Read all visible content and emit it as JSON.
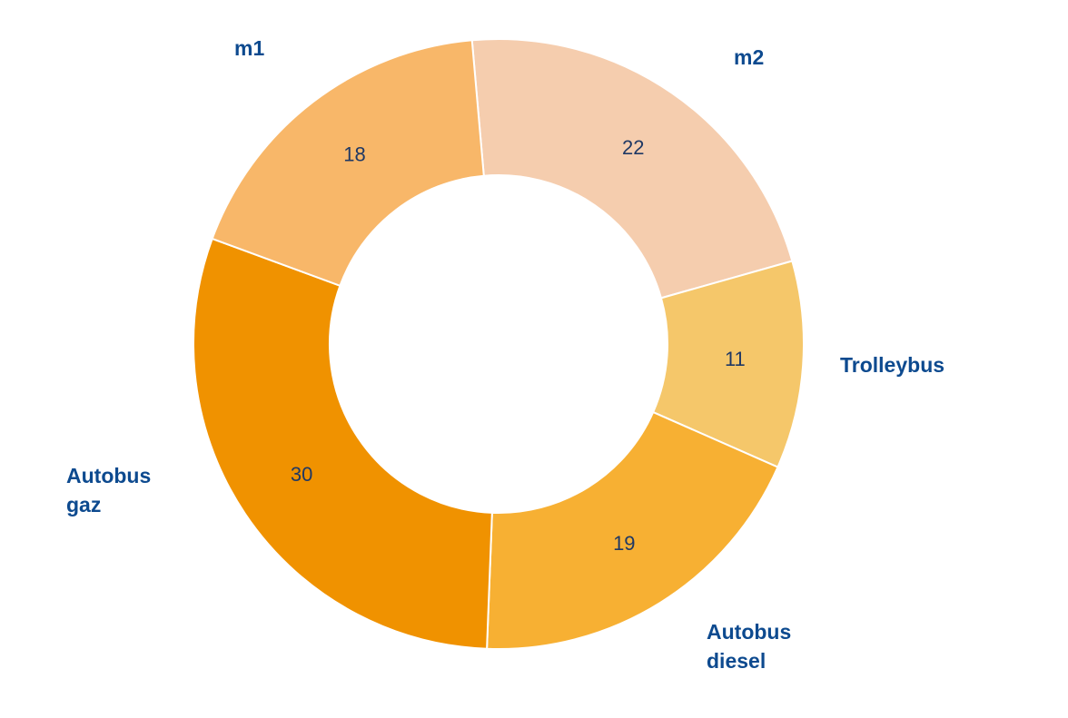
{
  "chart_data": {
    "type": "pie",
    "variant": "donut",
    "categories": [
      "m2",
      "Trolleybus",
      "Autobus diesel",
      "Autobus gaz",
      "m1"
    ],
    "label_lines": [
      [
        "m2"
      ],
      [
        "Trolleybus"
      ],
      [
        "Autobus",
        "diesel"
      ],
      [
        "Autobus",
        "gaz"
      ],
      [
        "m1"
      ]
    ],
    "values": [
      22,
      11,
      19,
      30,
      18
    ],
    "colors": [
      "#F5CDAE",
      "#F5C76A",
      "#F7B033",
      "#F09200",
      "#F8B769"
    ],
    "label_color": "#0D4A8F",
    "value_label_color": "#1F3864",
    "start_angle_deg": -5,
    "direction": "clockwise"
  }
}
